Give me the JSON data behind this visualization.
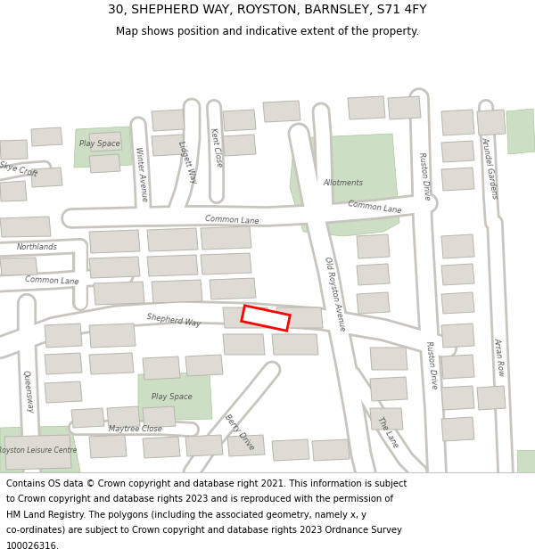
{
  "title": "30, SHEPHERD WAY, ROYSTON, BARNSLEY, S71 4FY",
  "subtitle": "Map shows position and indicative extent of the property.",
  "footer": "Contains OS data © Crown copyright and database right 2021. This information is subject to Crown copyright and database rights 2023 and is reproduced with the permission of HM Land Registry. The polygons (including the associated geometry, namely x, y co-ordinates) are subject to Crown copyright and database rights 2023 Ordnance Survey 100026316.",
  "bg_color": "#f2efea",
  "road_color": "#ffffff",
  "road_casing": "#c8c4be",
  "building_color": "#dedad4",
  "building_outline": "#b8b4ae",
  "green_color": "#ccdfc4",
  "green_outline": "#aac898",
  "plot_fill": "#ffffff",
  "plot_outline": "#ff0000",
  "plot_lw": 2.0,
  "title_fontsize": 10,
  "subtitle_fontsize": 8.5,
  "footer_fontsize": 7.2,
  "label_fontsize": 6.0,
  "label_color": "#555555"
}
